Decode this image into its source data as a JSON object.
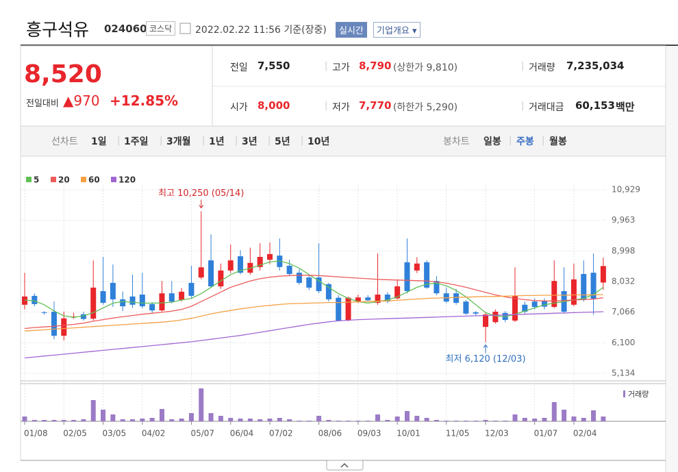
{
  "header": {
    "name": "흥구석유",
    "code": "024060",
    "market": "코스닥",
    "timestamp": "2022.02.22 11:56 기준(장중)",
    "realtime_button": "실시간",
    "company_button": "기업개요"
  },
  "quote": {
    "price": "8,520",
    "change_label": "전일대비",
    "change": "▲970",
    "change_pct": "+12.85%",
    "rows": [
      [
        {
          "label": "전일",
          "value": "7,550"
        },
        {
          "label": "고가",
          "value": "8,790",
          "extra": "(상한가 9,810)"
        },
        {
          "label": "거래량",
          "value": "7,235,034"
        }
      ],
      [
        {
          "label": "시가",
          "value": "8,000"
        },
        {
          "label": "저가",
          "value": "7,770",
          "extra": "(하한가 5,290)"
        },
        {
          "label": "거래대금",
          "value": "60,153",
          "unit": "백만"
        }
      ]
    ]
  },
  "tabs": {
    "line_label": "선차트",
    "line_periods": [
      "1일",
      "1주일",
      "3개월",
      "1년",
      "3년",
      "5년",
      "10년"
    ],
    "candle_label": "봉차트",
    "candle_periods": [
      "일봉",
      "주봉",
      "월봉"
    ],
    "active_candle_period": 1
  },
  "chart_data": {
    "type": "candlestick",
    "categories": [
      "01/08",
      null,
      null,
      null,
      "02/05",
      null,
      null,
      null,
      "03/05",
      null,
      null,
      null,
      "04/02",
      null,
      null,
      null,
      null,
      "05/07",
      null,
      null,
      null,
      "06/04",
      null,
      null,
      null,
      "07/02",
      null,
      null,
      null,
      null,
      "08/06",
      null,
      null,
      null,
      "09/03",
      null,
      null,
      null,
      "10/01",
      null,
      null,
      null,
      null,
      "11/05",
      null,
      null,
      null,
      "12/03",
      null,
      null,
      null,
      null,
      "01/07",
      null,
      null,
      null,
      "02/04",
      null,
      null,
      null
    ],
    "open": [
      7300,
      7580,
      7060,
      7080,
      6320,
      6900,
      7000,
      6860,
      7730,
      7990,
      7470,
      7560,
      7620,
      7320,
      7120,
      7660,
      7450,
      7990,
      8160,
      8700,
      7880,
      8380,
      8830,
      8310,
      8490,
      8720,
      8850,
      8530,
      8310,
      8160,
      8160,
      7950,
      7520,
      6820,
      7400,
      7530,
      7360,
      7620,
      7500,
      8640,
      8380,
      8640,
      8050,
      7660,
      7660,
      7400,
      7060,
      6600,
      6750,
      7040,
      6800,
      7300,
      7400,
      7420,
      7230,
      7730,
      7300,
      8270,
      8310,
      8000
    ],
    "high": [
      8310,
      7660,
      7100,
      7400,
      7080,
      7050,
      7080,
      8700,
      8810,
      8570,
      7720,
      8250,
      8310,
      7380,
      8050,
      8050,
      7830,
      8530,
      10250,
      9520,
      8600,
      9200,
      9020,
      9100,
      9240,
      9270,
      9390,
      8720,
      8420,
      8250,
      9240,
      7990,
      7600,
      7560,
      7620,
      7600,
      8920,
      7700,
      8100,
      9390,
      8800,
      8700,
      8200,
      7850,
      7800,
      7450,
      7100,
      7040,
      7150,
      7100,
      8480,
      7400,
      7500,
      7500,
      8700,
      8480,
      8600,
      8700,
      8920,
      8790
    ],
    "low": [
      7150,
      7250,
      6990,
      6210,
      6170,
      6850,
      6800,
      6800,
      7300,
      7230,
      7100,
      7200,
      7190,
      7050,
      7080,
      7340,
      7400,
      7510,
      8100,
      7840,
      7800,
      8300,
      8260,
      8250,
      8380,
      8580,
      8380,
      8200,
      7930,
      7760,
      7660,
      7400,
      6790,
      6780,
      7350,
      7400,
      7300,
      7350,
      7470,
      7660,
      8300,
      7800,
      7600,
      7350,
      7300,
      6980,
      6950,
      6120,
      6700,
      6750,
      6750,
      7000,
      7150,
      7150,
      7190,
      7020,
      7250,
      7400,
      6980,
      7770
    ],
    "close": [
      7560,
      7320,
      7040,
      6320,
      6870,
      6930,
      6850,
      7840,
      7360,
      7470,
      7250,
      7300,
      7250,
      7120,
      7660,
      7400,
      7710,
      7580,
      8480,
      7880,
      8380,
      8700,
      8310,
      8620,
      8810,
      8900,
      8490,
      8270,
      7990,
      7840,
      7730,
      7470,
      6800,
      7520,
      7530,
      7440,
      7620,
      7400,
      7880,
      7730,
      8600,
      7840,
      7660,
      7400,
      7360,
      7020,
      7020,
      6990,
      7080,
      6820,
      7580,
      7080,
      7230,
      7240,
      8050,
      7080,
      8100,
      7470,
      7470,
      8520
    ],
    "up_color": "#e8262b",
    "down_color": "#2f80d9",
    "series": [
      {
        "name": "5",
        "color": "#5fbf55",
        "values": [
          7450,
          7420,
          7300,
          7100,
          6950,
          6900,
          6950,
          7050,
          7200,
          7350,
          7400,
          7380,
          7350,
          7350,
          7360,
          7380,
          7450,
          7500,
          7650,
          7850,
          8050,
          8250,
          8380,
          8450,
          8550,
          8650,
          8680,
          8600,
          8450,
          8250,
          8050,
          7850,
          7650,
          7500,
          7400,
          7350,
          7400,
          7450,
          7550,
          7700,
          7850,
          7950,
          7980,
          7900,
          7750,
          7550,
          7300,
          7050,
          6950,
          6920,
          7000,
          7100,
          7200,
          7300,
          7350,
          7400,
          7450,
          7500,
          7620,
          7850
        ]
      },
      {
        "name": "20",
        "color": "#ee5b5b",
        "values": [
          6550,
          6580,
          6600,
          6620,
          6650,
          6680,
          6720,
          6780,
          6830,
          6880,
          6920,
          6960,
          7000,
          7030,
          7060,
          7100,
          7150,
          7250,
          7400,
          7550,
          7700,
          7850,
          7950,
          8050,
          8120,
          8170,
          8200,
          8220,
          8230,
          8230,
          8220,
          8200,
          8180,
          8160,
          8140,
          8120,
          8100,
          8090,
          8080,
          8070,
          8060,
          8050,
          8020,
          7980,
          7920,
          7850,
          7770,
          7690,
          7610,
          7550,
          7500,
          7460,
          7430,
          7420,
          7420,
          7430,
          7450,
          7460,
          7480,
          7520
        ]
      },
      {
        "name": "60",
        "color": "#f5a043",
        "values": [
          6470,
          6490,
          6510,
          6530,
          6550,
          6570,
          6590,
          6610,
          6630,
          6650,
          6670,
          6690,
          6710,
          6730,
          6750,
          6780,
          6820,
          6870,
          6940,
          7010,
          7070,
          7120,
          7170,
          7210,
          7250,
          7280,
          7310,
          7330,
          7340,
          7350,
          7360,
          7370,
          7370,
          7380,
          7390,
          7400,
          7410,
          7420,
          7440,
          7460,
          7480,
          7500,
          7510,
          7520,
          7530,
          7540,
          7550,
          7560,
          7560,
          7570,
          7580,
          7590,
          7590,
          7600,
          7600,
          7600,
          7610,
          7610,
          7610,
          7620
        ]
      },
      {
        "name": "120",
        "color": "#a066d3",
        "values": [
          5620,
          5650,
          5680,
          5710,
          5740,
          5770,
          5800,
          5830,
          5860,
          5890,
          5920,
          5950,
          5980,
          6010,
          6040,
          6070,
          6100,
          6130,
          6170,
          6210,
          6250,
          6290,
          6330,
          6380,
          6430,
          6480,
          6530,
          6580,
          6630,
          6680,
          6720,
          6760,
          6790,
          6810,
          6830,
          6840,
          6850,
          6860,
          6870,
          6880,
          6890,
          6900,
          6910,
          6920,
          6930,
          6940,
          6950,
          6960,
          6970,
          6980,
          6990,
          7000,
          7010,
          7020,
          7030,
          7040,
          7050,
          7060,
          7070,
          7080
        ]
      }
    ],
    "volume": {
      "name": "거래량",
      "color": "#9b7bc6",
      "ylim": [
        0,
        55000000
      ],
      "values": [
        7000000,
        2000000,
        2000000,
        2000000,
        2000000,
        2000000,
        3000000,
        31000000,
        17000000,
        10000000,
        3000000,
        3000000,
        4000000,
        5000000,
        18000000,
        3000000,
        4000000,
        12000000,
        48000000,
        12000000,
        8000000,
        5000000,
        4000000,
        4000000,
        3000000,
        4000000,
        5000000,
        3000000,
        1000000,
        1000000,
        8000000,
        2000000,
        1000000,
        1000000,
        1000000,
        1000000,
        10000000,
        2000000,
        7000000,
        15000000,
        8000000,
        5000000,
        2000000,
        1000000,
        1000000,
        1000000,
        1000000,
        2000000,
        1000000,
        1000000,
        10000000,
        5000000,
        4000000,
        5000000,
        28000000,
        17000000,
        7000000,
        5000000,
        16000000,
        7000000
      ]
    },
    "ylim": [
      5134,
      10929
    ],
    "yticks": [
      {
        "value": 10929,
        "label": "10,929"
      },
      {
        "value": 9963,
        "label": "9,963"
      },
      {
        "value": 8998,
        "label": "8,998"
      },
      {
        "value": 8032,
        "label": "8,032"
      },
      {
        "value": 7066,
        "label": "7,066"
      },
      {
        "value": 6100,
        "label": "6,100"
      },
      {
        "value": 5134,
        "label": "5,134"
      }
    ],
    "grid": true,
    "high_annotation": "최고 10,250 (05/14)",
    "low_annotation": "최저 6,120 (12/03)"
  }
}
